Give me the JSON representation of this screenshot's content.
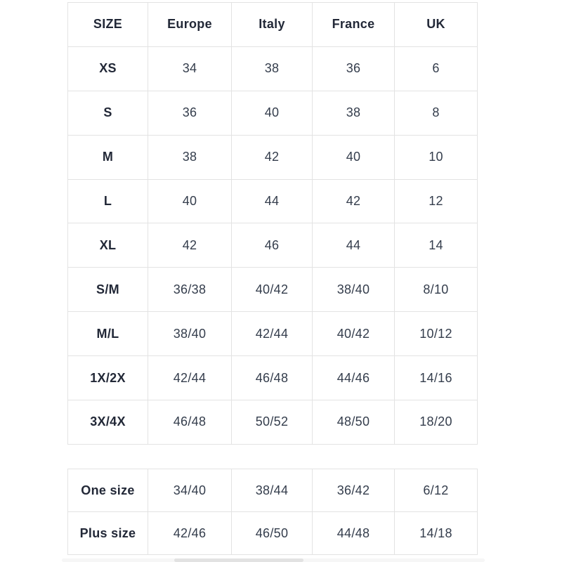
{
  "colors": {
    "border_color": "#e3e3e3",
    "label_color": "#222837",
    "value_color": "#343d4c",
    "bg_color": "#ffffff"
  },
  "main_table": {
    "headers": [
      "SIZE",
      "Europe",
      "Italy",
      "France",
      "UK"
    ],
    "rows": [
      {
        "size": "XS",
        "values": [
          "34",
          "38",
          "36",
          "6"
        ]
      },
      {
        "size": "S",
        "values": [
          "36",
          "40",
          "38",
          "8"
        ]
      },
      {
        "size": "M",
        "values": [
          "38",
          "42",
          "40",
          "10"
        ]
      },
      {
        "size": "L",
        "values": [
          "40",
          "44",
          "42",
          "12"
        ]
      },
      {
        "size": "XL",
        "values": [
          "42",
          "46",
          "44",
          "14"
        ]
      },
      {
        "size": "S/M",
        "values": [
          "36/38",
          "40/42",
          "38/40",
          "8/10"
        ]
      },
      {
        "size": "M/L",
        "values": [
          "38/40",
          "42/44",
          "40/42",
          "10/12"
        ]
      },
      {
        "size": "1X/2X",
        "values": [
          "42/44",
          "46/48",
          "44/46",
          "14/16"
        ]
      },
      {
        "size": "3X/4X",
        "values": [
          "46/48",
          "50/52",
          "48/50",
          "18/20"
        ]
      }
    ]
  },
  "extra_table": {
    "rows": [
      {
        "size": "One size",
        "values": [
          "34/40",
          "38/44",
          "36/42",
          "6/12"
        ]
      },
      {
        "size": "Plus size",
        "values": [
          "42/46",
          "46/50",
          "44/48",
          "14/18"
        ]
      }
    ]
  }
}
